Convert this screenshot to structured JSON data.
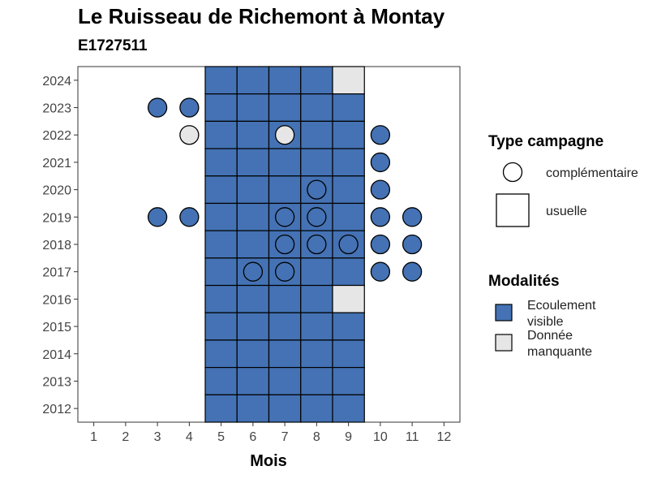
{
  "chart_data": {
    "type": "heatmap",
    "title": "Le Ruisseau de Richemont à Montay",
    "subtitle": "E1727511",
    "xlabel": "Mois",
    "ylabel": "",
    "x_ticks": [
      1,
      2,
      3,
      4,
      5,
      6,
      7,
      8,
      9,
      10,
      11,
      12
    ],
    "y_ticks": [
      2012,
      2013,
      2014,
      2015,
      2016,
      2017,
      2018,
      2019,
      2020,
      2021,
      2022,
      2023,
      2024
    ],
    "xlim": [
      0.5,
      12.5
    ],
    "ylim": [
      2011.5,
      2024.5
    ],
    "colors": {
      "Ecoulement visible": "#4472b4",
      "Donnée manquante": "#e6e6e6"
    },
    "usuelle": [
      {
        "year": 2024,
        "month": 5,
        "modalite": "Ecoulement visible"
      },
      {
        "year": 2024,
        "month": 6,
        "modalite": "Ecoulement visible"
      },
      {
        "year": 2024,
        "month": 7,
        "modalite": "Ecoulement visible"
      },
      {
        "year": 2024,
        "month": 8,
        "modalite": "Ecoulement visible"
      },
      {
        "year": 2024,
        "month": 9,
        "modalite": "Donnée manquante"
      },
      {
        "year": 2023,
        "month": 5,
        "modalite": "Ecoulement visible"
      },
      {
        "year": 2023,
        "month": 6,
        "modalite": "Ecoulement visible"
      },
      {
        "year": 2023,
        "month": 7,
        "modalite": "Ecoulement visible"
      },
      {
        "year": 2023,
        "month": 8,
        "modalite": "Ecoulement visible"
      },
      {
        "year": 2023,
        "month": 9,
        "modalite": "Ecoulement visible"
      },
      {
        "year": 2022,
        "month": 5,
        "modalite": "Ecoulement visible"
      },
      {
        "year": 2022,
        "month": 6,
        "modalite": "Ecoulement visible"
      },
      {
        "year": 2022,
        "month": 7,
        "modalite": "Ecoulement visible"
      },
      {
        "year": 2022,
        "month": 8,
        "modalite": "Ecoulement visible"
      },
      {
        "year": 2022,
        "month": 9,
        "modalite": "Ecoulement visible"
      },
      {
        "year": 2021,
        "month": 5,
        "modalite": "Ecoulement visible"
      },
      {
        "year": 2021,
        "month": 6,
        "modalite": "Ecoulement visible"
      },
      {
        "year": 2021,
        "month": 7,
        "modalite": "Ecoulement visible"
      },
      {
        "year": 2021,
        "month": 8,
        "modalite": "Ecoulement visible"
      },
      {
        "year": 2021,
        "month": 9,
        "modalite": "Ecoulement visible"
      },
      {
        "year": 2020,
        "month": 5,
        "modalite": "Ecoulement visible"
      },
      {
        "year": 2020,
        "month": 6,
        "modalite": "Ecoulement visible"
      },
      {
        "year": 2020,
        "month": 7,
        "modalite": "Ecoulement visible"
      },
      {
        "year": 2020,
        "month": 8,
        "modalite": "Ecoulement visible"
      },
      {
        "year": 2020,
        "month": 9,
        "modalite": "Ecoulement visible"
      },
      {
        "year": 2019,
        "month": 5,
        "modalite": "Ecoulement visible"
      },
      {
        "year": 2019,
        "month": 6,
        "modalite": "Ecoulement visible"
      },
      {
        "year": 2019,
        "month": 7,
        "modalite": "Ecoulement visible"
      },
      {
        "year": 2019,
        "month": 8,
        "modalite": "Ecoulement visible"
      },
      {
        "year": 2019,
        "month": 9,
        "modalite": "Ecoulement visible"
      },
      {
        "year": 2018,
        "month": 5,
        "modalite": "Ecoulement visible"
      },
      {
        "year": 2018,
        "month": 6,
        "modalite": "Ecoulement visible"
      },
      {
        "year": 2018,
        "month": 7,
        "modalite": "Ecoulement visible"
      },
      {
        "year": 2018,
        "month": 8,
        "modalite": "Ecoulement visible"
      },
      {
        "year": 2018,
        "month": 9,
        "modalite": "Ecoulement visible"
      },
      {
        "year": 2017,
        "month": 5,
        "modalite": "Ecoulement visible"
      },
      {
        "year": 2017,
        "month": 6,
        "modalite": "Ecoulement visible"
      },
      {
        "year": 2017,
        "month": 7,
        "modalite": "Ecoulement visible"
      },
      {
        "year": 2017,
        "month": 8,
        "modalite": "Ecoulement visible"
      },
      {
        "year": 2017,
        "month": 9,
        "modalite": "Ecoulement visible"
      },
      {
        "year": 2016,
        "month": 5,
        "modalite": "Ecoulement visible"
      },
      {
        "year": 2016,
        "month": 6,
        "modalite": "Ecoulement visible"
      },
      {
        "year": 2016,
        "month": 7,
        "modalite": "Ecoulement visible"
      },
      {
        "year": 2016,
        "month": 8,
        "modalite": "Ecoulement visible"
      },
      {
        "year": 2016,
        "month": 9,
        "modalite": "Donnée manquante"
      },
      {
        "year": 2015,
        "month": 5,
        "modalite": "Ecoulement visible"
      },
      {
        "year": 2015,
        "month": 6,
        "modalite": "Ecoulement visible"
      },
      {
        "year": 2015,
        "month": 7,
        "modalite": "Ecoulement visible"
      },
      {
        "year": 2015,
        "month": 8,
        "modalite": "Ecoulement visible"
      },
      {
        "year": 2015,
        "month": 9,
        "modalite": "Ecoulement visible"
      },
      {
        "year": 2014,
        "month": 5,
        "modalite": "Ecoulement visible"
      },
      {
        "year": 2014,
        "month": 6,
        "modalite": "Ecoulement visible"
      },
      {
        "year": 2014,
        "month": 7,
        "modalite": "Ecoulement visible"
      },
      {
        "year": 2014,
        "month": 8,
        "modalite": "Ecoulement visible"
      },
      {
        "year": 2014,
        "month": 9,
        "modalite": "Ecoulement visible"
      },
      {
        "year": 2013,
        "month": 5,
        "modalite": "Ecoulement visible"
      },
      {
        "year": 2013,
        "month": 6,
        "modalite": "Ecoulement visible"
      },
      {
        "year": 2013,
        "month": 7,
        "modalite": "Ecoulement visible"
      },
      {
        "year": 2013,
        "month": 8,
        "modalite": "Ecoulement visible"
      },
      {
        "year": 2013,
        "month": 9,
        "modalite": "Ecoulement visible"
      },
      {
        "year": 2012,
        "month": 5,
        "modalite": "Ecoulement visible"
      },
      {
        "year": 2012,
        "month": 6,
        "modalite": "Ecoulement visible"
      },
      {
        "year": 2012,
        "month": 7,
        "modalite": "Ecoulement visible"
      },
      {
        "year": 2012,
        "month": 8,
        "modalite": "Ecoulement visible"
      },
      {
        "year": 2012,
        "month": 9,
        "modalite": "Ecoulement visible"
      }
    ],
    "complementaire": [
      {
        "year": 2023,
        "month": 3,
        "modalite": "Ecoulement visible"
      },
      {
        "year": 2023,
        "month": 4,
        "modalite": "Ecoulement visible"
      },
      {
        "year": 2022,
        "month": 4,
        "modalite": "Donnée manquante"
      },
      {
        "year": 2022,
        "month": 7,
        "modalite": "Donnée manquante"
      },
      {
        "year": 2022,
        "month": 10,
        "modalite": "Ecoulement visible"
      },
      {
        "year": 2021,
        "month": 10,
        "modalite": "Ecoulement visible"
      },
      {
        "year": 2020,
        "month": 8,
        "modalite": "Ecoulement visible"
      },
      {
        "year": 2020,
        "month": 10,
        "modalite": "Ecoulement visible"
      },
      {
        "year": 2019,
        "month": 3,
        "modalite": "Ecoulement visible"
      },
      {
        "year": 2019,
        "month": 4,
        "modalite": "Ecoulement visible"
      },
      {
        "year": 2019,
        "month": 7,
        "modalite": "Ecoulement visible"
      },
      {
        "year": 2019,
        "month": 8,
        "modalite": "Ecoulement visible"
      },
      {
        "year": 2019,
        "month": 10,
        "modalite": "Ecoulement visible"
      },
      {
        "year": 2019,
        "month": 11,
        "modalite": "Ecoulement visible"
      },
      {
        "year": 2018,
        "month": 7,
        "modalite": "Ecoulement visible"
      },
      {
        "year": 2018,
        "month": 8,
        "modalite": "Ecoulement visible"
      },
      {
        "year": 2018,
        "month": 9,
        "modalite": "Ecoulement visible"
      },
      {
        "year": 2018,
        "month": 10,
        "modalite": "Ecoulement visible"
      },
      {
        "year": 2018,
        "month": 11,
        "modalite": "Ecoulement visible"
      },
      {
        "year": 2017,
        "month": 6,
        "modalite": "Ecoulement visible"
      },
      {
        "year": 2017,
        "month": 7,
        "modalite": "Ecoulement visible"
      },
      {
        "year": 2017,
        "month": 10,
        "modalite": "Ecoulement visible"
      },
      {
        "year": 2017,
        "month": 11,
        "modalite": "Ecoulement visible"
      }
    ],
    "legend": {
      "position": "right",
      "type_campagne": {
        "title": "Type campagne",
        "items": [
          {
            "label": "complémentaire",
            "shape": "circle"
          },
          {
            "label": "usuelle",
            "shape": "square"
          }
        ]
      },
      "modalites": {
        "title": "Modalités",
        "items": [
          {
            "label_lines": [
              "Ecoulement",
              "visible"
            ],
            "color": "#4472b4"
          },
          {
            "label_lines": [
              "Donnée",
              "manquante"
            ],
            "color": "#e6e6e6"
          }
        ]
      }
    }
  }
}
